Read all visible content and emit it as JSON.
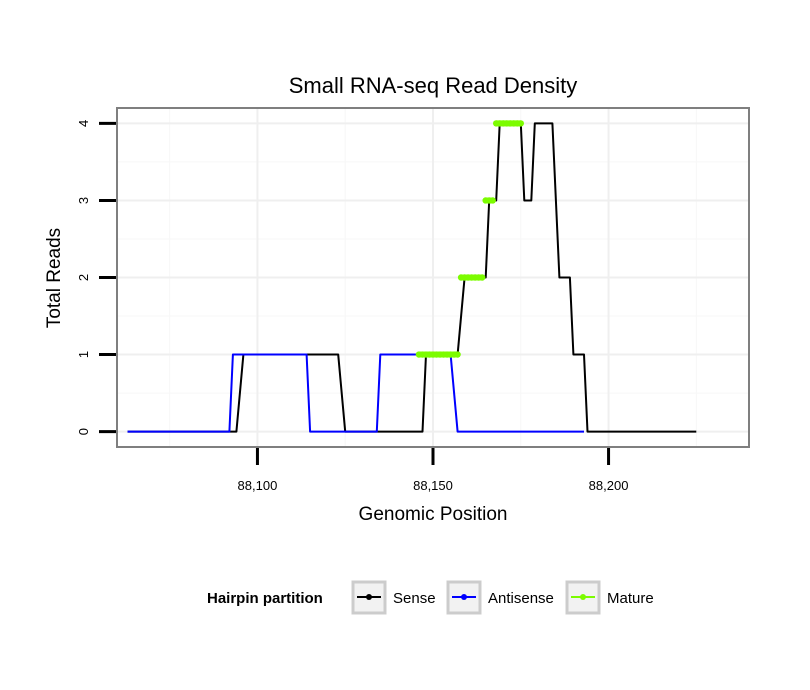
{
  "chart_data": {
    "type": "line",
    "title": "Small RNA-seq Read Density",
    "xlabel": "Genomic Position",
    "ylabel": "Total Reads",
    "xlim": [
      88060,
      88240
    ],
    "ylim": [
      -0.2,
      4.2
    ],
    "x_ticks": [
      88100,
      88150,
      88200
    ],
    "x_tick_labels": [
      "88,100",
      "88,150",
      "88,200"
    ],
    "y_ticks": [
      0,
      1,
      2,
      3,
      4
    ],
    "y_tick_labels": [
      "0",
      "1",
      "2",
      "3",
      "4"
    ],
    "grid": true,
    "legend": {
      "title": "Hairpin partition",
      "position": "bottom",
      "entries": [
        {
          "name": "Sense",
          "color": "#000000"
        },
        {
          "name": "Antisense",
          "color": "#0000ff"
        },
        {
          "name": "Mature",
          "color": "#7cfc00"
        }
      ]
    },
    "series": [
      {
        "name": "Sense",
        "color": "#000000",
        "points": [
          [
            88063,
            0
          ],
          [
            88094,
            0
          ],
          [
            88096,
            1
          ],
          [
            88123,
            1
          ],
          [
            88125,
            0
          ],
          [
            88147,
            0
          ],
          [
            88148,
            1
          ],
          [
            88157,
            1
          ],
          [
            88159,
            2
          ],
          [
            88165,
            2
          ],
          [
            88166,
            3
          ],
          [
            88168,
            3
          ],
          [
            88169,
            4
          ],
          [
            88175,
            4
          ],
          [
            88176,
            3
          ],
          [
            88178,
            3
          ],
          [
            88179,
            4
          ],
          [
            88184,
            4
          ],
          [
            88186,
            2
          ],
          [
            88189,
            2
          ],
          [
            88190,
            1
          ],
          [
            88193,
            1
          ],
          [
            88194,
            0
          ],
          [
            88225,
            0
          ]
        ]
      },
      {
        "name": "Antisense",
        "color": "#0000ff",
        "points": [
          [
            88063,
            0
          ],
          [
            88092,
            0
          ],
          [
            88093,
            1
          ],
          [
            88114,
            1
          ],
          [
            88115,
            0
          ],
          [
            88134,
            0
          ],
          [
            88135,
            1
          ],
          [
            88155,
            1
          ],
          [
            88157,
            0
          ],
          [
            88193,
            0
          ]
        ]
      },
      {
        "name": "Mature",
        "color": "#7cfc00",
        "segments": [
          {
            "x": [
              88146,
              88157
            ],
            "y": 1
          },
          {
            "x": [
              88158,
              88164
            ],
            "y": 2
          },
          {
            "x": [
              88165,
              88167
            ],
            "y": 3
          },
          {
            "x": [
              88168,
              88175
            ],
            "y": 4
          }
        ]
      }
    ]
  }
}
